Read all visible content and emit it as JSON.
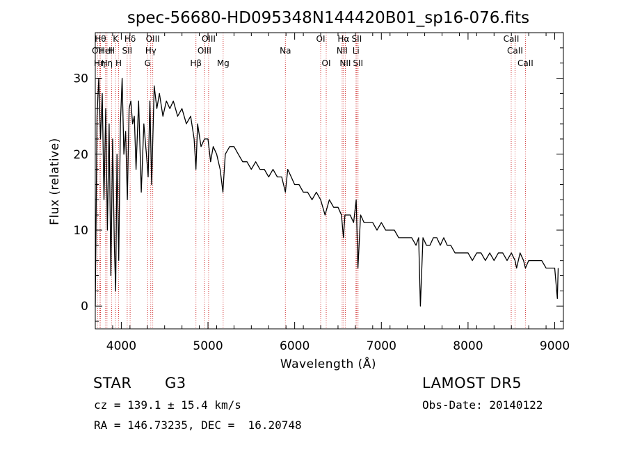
{
  "chart_data": {
    "type": "line",
    "title": "spec-56680-HD095348N144420B01_sp16-076.fits",
    "xlabel": "Wavelength (Å)",
    "ylabel": "Flux (relative)",
    "xlim": [
      3700,
      9100
    ],
    "ylim": [
      -3,
      36
    ],
    "x_ticks": [
      "4000",
      "5000",
      "6000",
      "7000",
      "8000",
      "9000"
    ],
    "x_tick_values": [
      4000,
      5000,
      6000,
      7000,
      8000,
      9000
    ],
    "y_ticks": [
      "0",
      "10",
      "20",
      "30"
    ],
    "y_tick_values": [
      0,
      10,
      20,
      30
    ],
    "grid": false,
    "series": [
      {
        "color": "#000000",
        "x": [
          3700,
          3720,
          3740,
          3760,
          3780,
          3800,
          3820,
          3840,
          3860,
          3880,
          3900,
          3920,
          3935,
          3950,
          3970,
          3990,
          4010,
          4030,
          4050,
          4070,
          4090,
          4110,
          4130,
          4150,
          4170,
          4200,
          4230,
          4260,
          4290,
          4310,
          4330,
          4350,
          4380,
          4410,
          4440,
          4480,
          4520,
          4560,
          4600,
          4650,
          4700,
          4750,
          4800,
          4840,
          4861,
          4880,
          4920,
          4960,
          5000,
          5030,
          5060,
          5100,
          5140,
          5172,
          5183,
          5200,
          5250,
          5300,
          5350,
          5400,
          5450,
          5500,
          5550,
          5600,
          5650,
          5700,
          5750,
          5800,
          5850,
          5893,
          5920,
          5960,
          6000,
          6050,
          6100,
          6150,
          6200,
          6250,
          6300,
          6350,
          6400,
          6450,
          6500,
          6540,
          6563,
          6580,
          6600,
          6640,
          6680,
          6710,
          6730,
          6760,
          6800,
          6850,
          6900,
          6950,
          7000,
          7050,
          7100,
          7150,
          7200,
          7250,
          7300,
          7350,
          7400,
          7430,
          7450,
          7480,
          7520,
          7560,
          7600,
          7640,
          7680,
          7720,
          7760,
          7800,
          7850,
          7900,
          7950,
          8000,
          8050,
          8100,
          8150,
          8200,
          8250,
          8300,
          8350,
          8400,
          8450,
          8500,
          8542,
          8560,
          8600,
          8640,
          8662,
          8700,
          8750,
          8800,
          8850,
          8900,
          8950,
          9000,
          9030,
          9040
        ],
        "y": [
          0,
          25,
          30,
          22,
          28,
          14,
          26,
          10,
          24,
          4,
          22,
          8,
          2,
          20,
          6,
          24,
          30,
          20,
          23,
          14,
          26,
          27,
          24,
          25,
          18,
          27,
          15,
          24,
          20,
          17,
          27,
          16,
          29,
          26,
          28,
          25,
          27,
          26,
          27,
          25,
          26,
          24,
          25,
          22,
          18,
          24,
          21,
          22,
          22,
          19,
          21,
          20,
          18,
          15,
          17,
          20,
          21,
          21,
          20,
          19,
          19,
          18,
          19,
          18,
          18,
          17,
          18,
          17,
          17,
          15,
          18,
          17,
          16,
          16,
          15,
          15,
          14,
          15,
          14,
          12,
          14,
          13,
          13,
          12,
          9,
          12,
          12,
          12,
          11,
          14,
          5,
          12,
          11,
          11,
          11,
          10,
          11,
          10,
          10,
          10,
          9,
          9,
          9,
          9,
          8,
          9,
          0,
          9,
          8,
          8,
          9,
          9,
          8,
          9,
          8,
          8,
          7,
          7,
          7,
          7,
          6,
          7,
          7,
          6,
          7,
          6,
          7,
          7,
          6,
          7,
          6,
          5,
          7,
          6,
          5,
          6,
          6,
          6,
          6,
          5,
          5,
          5,
          1,
          5
        ]
      }
    ],
    "lines": [
      {
        "x": 3726,
        "row": 1,
        "label": "OII"
      },
      {
        "x": 3750,
        "row": 2,
        "label": "Hη"
      },
      {
        "x": 3760,
        "row": 0,
        "label": "Hθ"
      },
      {
        "x": 3819,
        "row": 1,
        "label": "HeI"
      },
      {
        "x": 3835,
        "row": 2,
        "label": "Hη"
      },
      {
        "x": 3889,
        "row": 1,
        "label": "H"
      },
      {
        "x": 3934,
        "row": 0,
        "label": "K"
      },
      {
        "x": 3969,
        "row": 2,
        "label": "H"
      },
      {
        "x": 4068,
        "row": 1,
        "label": "SII"
      },
      {
        "x": 4102,
        "row": 0,
        "label": "Hδ"
      },
      {
        "x": 4304,
        "row": 2,
        "label": "G"
      },
      {
        "x": 4340,
        "row": 1,
        "label": "Hγ"
      },
      {
        "x": 4363,
        "row": 0,
        "label": "OIII"
      },
      {
        "x": 4861,
        "row": 2,
        "label": "Hβ"
      },
      {
        "x": 4959,
        "row": 1,
        "label": "OIII"
      },
      {
        "x": 5007,
        "row": 0,
        "label": "OIII"
      },
      {
        "x": 5175,
        "row": 2,
        "label": "Mg"
      },
      {
        "x": 5893,
        "row": 1,
        "label": "Na"
      },
      {
        "x": 6300,
        "row": 0,
        "label": "OI"
      },
      {
        "x": 6364,
        "row": 2,
        "label": "OI"
      },
      {
        "x": 6548,
        "row": 1,
        "label": "NII"
      },
      {
        "x": 6563,
        "row": 0,
        "label": "Hα"
      },
      {
        "x": 6584,
        "row": 2,
        "label": "NII"
      },
      {
        "x": 6707,
        "row": 1,
        "label": "Li"
      },
      {
        "x": 6716,
        "row": 0,
        "label": "SII"
      },
      {
        "x": 6731,
        "row": 2,
        "label": "SII"
      },
      {
        "x": 8498,
        "row": 0,
        "label": "CaII"
      },
      {
        "x": 8542,
        "row": 1,
        "label": "CaII"
      },
      {
        "x": 8662,
        "row": 2,
        "label": "CaII"
      }
    ],
    "marker_color": "#d33b3b"
  },
  "info": {
    "object_class": "STAR",
    "subclass": "G3",
    "survey": "LAMOST DR5",
    "redshift": "cz = 139.1 ± 15.4 km/s",
    "obs_date": "Obs-Date: 20140122",
    "coords": "RA = 146.73235, DEC =  16.20748"
  }
}
